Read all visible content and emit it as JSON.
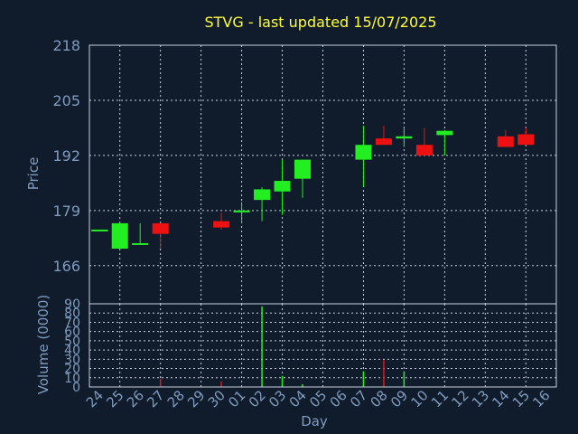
{
  "chart_data": [
    {
      "type": "candlestick",
      "title": "STVG - last updated 15/07/2025",
      "ylabel": "Price",
      "ylim": [
        157,
        218
      ],
      "yticks": [
        166,
        179,
        192,
        205,
        218
      ],
      "grid": true,
      "colors": {
        "up": "#22ee22",
        "down": "#ee1111",
        "background": "#101c2c",
        "text": "#7f9bbd",
        "title": "#ffff33"
      },
      "candles": [
        {
          "day": "24",
          "open": 174.5,
          "close": 174.5,
          "high": 174.5,
          "low": 174.5
        },
        {
          "day": "25",
          "open": 170.0,
          "close": 176.0,
          "high": 176.0,
          "low": 170.0
        },
        {
          "day": "26",
          "open": 171.0,
          "close": 171.3,
          "high": 176.0,
          "low": 171.0
        },
        {
          "day": "27",
          "open": 176.0,
          "close": 173.5,
          "high": 176.0,
          "low": 170.0
        },
        {
          "day": "28",
          "open": null,
          "close": null,
          "high": null,
          "low": null
        },
        {
          "day": "29",
          "open": null,
          "close": null,
          "high": null,
          "low": null
        },
        {
          "day": "30",
          "open": 176.5,
          "close": 175.0,
          "high": 178.5,
          "low": 174.5
        },
        {
          "day": "01",
          "open": 178.6,
          "close": 179.0,
          "high": 181.0,
          "low": 176.0
        },
        {
          "day": "02",
          "open": 181.5,
          "close": 184.0,
          "high": 184.5,
          "low": 176.5
        },
        {
          "day": "03",
          "open": 183.5,
          "close": 186.0,
          "high": 191.0,
          "low": 178.0
        },
        {
          "day": "04",
          "open": 186.5,
          "close": 191.0,
          "high": 191.0,
          "low": 182.0
        },
        {
          "day": "05",
          "open": null,
          "close": null,
          "high": null,
          "low": null
        },
        {
          "day": "06",
          "open": null,
          "close": null,
          "high": null,
          "low": null
        },
        {
          "day": "07",
          "open": 191.0,
          "close": 194.5,
          "high": 199.0,
          "low": 184.5
        },
        {
          "day": "08",
          "open": 196.0,
          "close": 194.5,
          "high": 199.0,
          "low": 194.5
        },
        {
          "day": "09",
          "open": 196.0,
          "close": 196.5,
          "high": 198.5,
          "low": 194.0
        },
        {
          "day": "10",
          "open": 194.5,
          "close": 192.0,
          "high": 198.5,
          "low": 192.0
        },
        {
          "day": "11",
          "open": 196.8,
          "close": 197.8,
          "high": 198.0,
          "low": 192.0
        },
        {
          "day": "12",
          "open": null,
          "close": null,
          "high": null,
          "low": null
        },
        {
          "day": "13",
          "open": null,
          "close": null,
          "high": null,
          "low": null
        },
        {
          "day": "14",
          "open": 196.5,
          "close": 194.0,
          "high": 198.0,
          "low": 194.0
        },
        {
          "day": "15",
          "open": 197.0,
          "close": 194.5,
          "high": 198.5,
          "low": 194.5
        },
        {
          "day": "16",
          "open": null,
          "close": null,
          "high": null,
          "low": null
        }
      ]
    },
    {
      "type": "bar",
      "ylabel": "Volume (0000)",
      "xlabel": "Day",
      "ylim": [
        0,
        90
      ],
      "yticks": [
        0,
        10,
        20,
        30,
        40,
        50,
        60,
        70,
        80,
        90
      ],
      "grid": true,
      "categories": [
        "24",
        "25",
        "26",
        "27",
        "28",
        "29",
        "30",
        "01",
        "02",
        "03",
        "04",
        "05",
        "06",
        "07",
        "08",
        "09",
        "10",
        "11",
        "12",
        "13",
        "14",
        "15",
        "16"
      ],
      "values": [
        0.5,
        0.5,
        0.5,
        9,
        0,
        0,
        6,
        0.5,
        87,
        12,
        3,
        0,
        0,
        17,
        29,
        17,
        0.5,
        0.5,
        0,
        0,
        0.5,
        0.5,
        0
      ],
      "directions": [
        "up",
        "up",
        "up",
        "down",
        "none",
        "none",
        "down",
        "up",
        "up",
        "up",
        "up",
        "none",
        "none",
        "up",
        "down",
        "up",
        "down",
        "up",
        "none",
        "none",
        "down",
        "down",
        "none"
      ]
    }
  ]
}
